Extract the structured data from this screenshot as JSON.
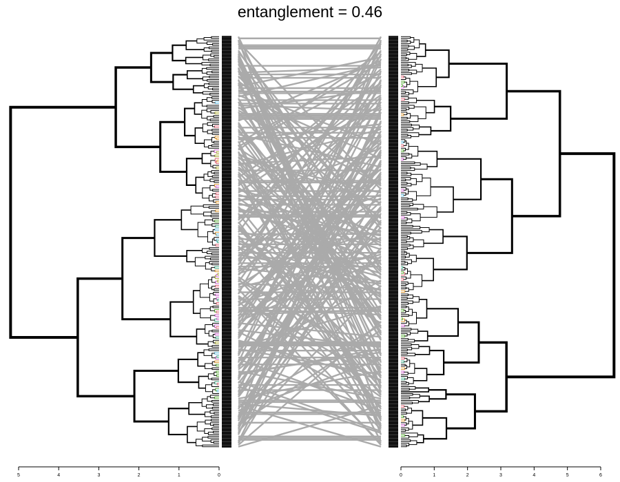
{
  "title": "entanglement = 0.46",
  "left_dendrogram": {
    "axis": {
      "min": 0,
      "max": 5,
      "ticks": [
        5,
        4,
        3,
        2,
        1,
        0
      ],
      "direction": "right-to-left"
    },
    "n_leaves": 240,
    "branch_colors": [
      "#cc66cc",
      "#66bbdd",
      "#44aa88",
      "#55aa33",
      "#aaaa33",
      "#dd9933",
      "#dd6677"
    ]
  },
  "right_dendrogram": {
    "axis": {
      "min": 0,
      "max": 6,
      "ticks": [
        0,
        1,
        2,
        3,
        4,
        5,
        6
      ],
      "direction": "left-to-right"
    },
    "n_leaves": 240,
    "branch_colors": [
      "#55aa33",
      "#66bbdd",
      "#dd9933",
      "#cc66cc",
      "#44aa88",
      "#dd6677"
    ]
  },
  "connector_color": "#aaaaaa",
  "tree_color": "#000000"
}
